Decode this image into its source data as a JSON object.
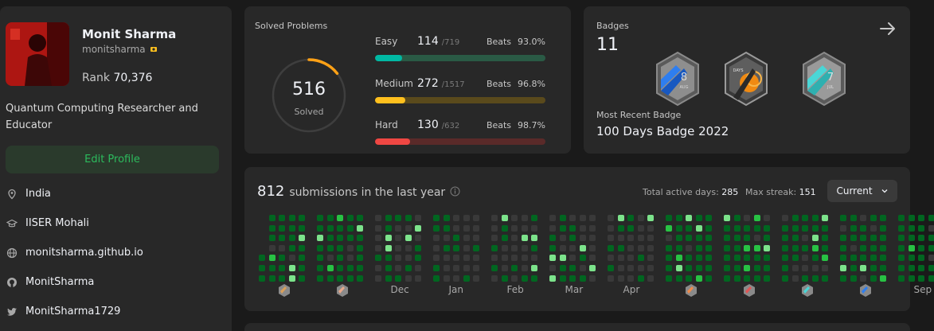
{
  "profile": {
    "name": "Monit Sharma",
    "username": "monitsharma",
    "rank_label": "Rank",
    "rank_value": "70,376",
    "bio": "Quantum Computing Researcher and Educator",
    "edit_label": "Edit Profile",
    "location": "India",
    "institution": "IISER Mohali",
    "website": "monitsharma.github.io",
    "github": "MonitSharma",
    "twitter": "MonitSharma1729"
  },
  "solved": {
    "title": "Solved Problems",
    "total": "516",
    "total_label": "Solved",
    "easy": {
      "label": "Easy",
      "count": "114",
      "total": "/719",
      "beats_label": "Beats",
      "beats": "93.0%",
      "fraction": 0.159
    },
    "medium": {
      "label": "Medium",
      "count": "272",
      "total": "/1517",
      "beats_label": "Beats",
      "beats": "96.8%",
      "fraction": 0.179
    },
    "hard": {
      "label": "Hard",
      "count": "130",
      "total": "/632",
      "beats_label": "Beats",
      "beats": "98.7%",
      "fraction": 0.206
    },
    "colors": {
      "easy": "#00b8a3",
      "medium": "#ffc01e",
      "hard": "#ef4743"
    }
  },
  "badges": {
    "title": "Badges",
    "count": "11",
    "recent_label": "Most Recent Badge",
    "recent_name": "100 Days Badge 2022",
    "items": [
      {
        "icon": "august-badge-icon",
        "text": "8",
        "sub": "AUG"
      },
      {
        "icon": "100-days-badge-icon",
        "text": "DAYS",
        "sub": ""
      },
      {
        "icon": "july-badge-icon",
        "text": "7",
        "sub": "JUL"
      }
    ]
  },
  "submissions": {
    "count": "812",
    "label": "submissions in the last year",
    "active_days_label": "Total active days:",
    "active_days": "285",
    "max_streak_label": "Max streak:",
    "max_streak": "151",
    "select_value": "Current",
    "months": [
      "",
      "",
      "Dec",
      "Jan",
      "Feb",
      "Mar",
      "Apr",
      "",
      "",
      "",
      "",
      "Sep"
    ],
    "month_icons": [
      "oct-badge-icon",
      "nov-badge-icon",
      "",
      "",
      "",
      "",
      "",
      "may-badge-icon",
      "jun-badge-icon",
      "jul-badge-icon",
      "aug-badge-icon",
      ""
    ],
    "colors": {
      "empty": "#393939",
      "l1": "#016620",
      "l2": "#28c244",
      "l3": "#7ce38b"
    }
  }
}
